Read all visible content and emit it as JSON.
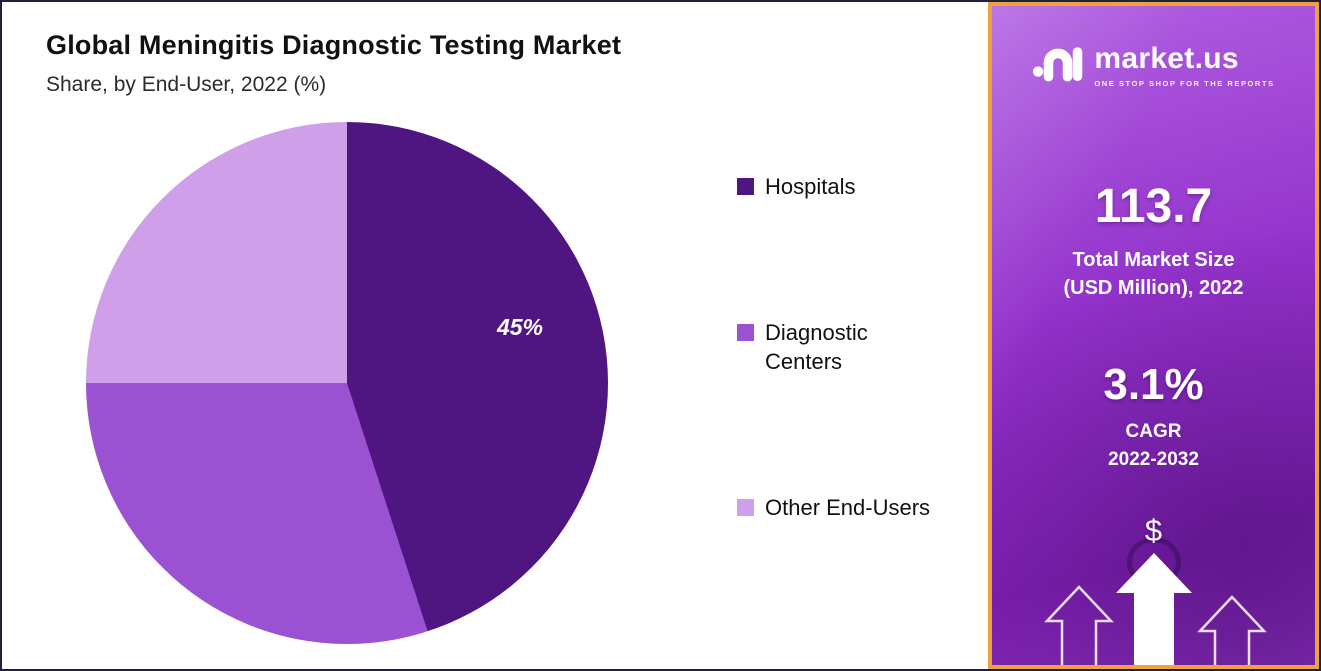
{
  "chart": {
    "title": "Global Meningitis Diagnostic Testing Market",
    "subtitle": "Share, by End-User, 2022 (%)"
  },
  "chart_data": {
    "type": "pie",
    "title": "Global Meningitis Diagnostic Testing Market",
    "subtitle": "Share, by End-User, 2022 (%)",
    "categories": [
      "Hospitals",
      "Diagnostic Centers",
      "Other End-Users"
    ],
    "values": [
      45,
      30,
      25
    ],
    "unit": "%",
    "colors": [
      "#4f1581",
      "#9a51d2",
      "#cf9fe9"
    ],
    "start_angle_deg": 0,
    "direction": "clockwise",
    "legend_position": "right",
    "labeled_slice": {
      "category": "Hospitals",
      "label": "45%"
    }
  },
  "sidebar": {
    "logo_text": "market.us",
    "logo_tagline": "ONE STOP SHOP FOR THE REPORTS",
    "stat1_value": "113.7",
    "stat1_label_line1": "Total Market Size",
    "stat1_label_line2": "(USD Million), 2022",
    "stat2_value": "3.1%",
    "stat2_label_line1": "CAGR",
    "stat2_label_line2": "2022-2032",
    "dollar_symbol": "$"
  },
  "colors": {
    "panel_border": "#efa13d",
    "panel_purple": "#9331cb",
    "outer_border": "#20203e",
    "pie_hospitals": "#4f1581",
    "pie_diagnostic_centers": "#9a51d2",
    "pie_other_end_users": "#cf9fe9"
  }
}
